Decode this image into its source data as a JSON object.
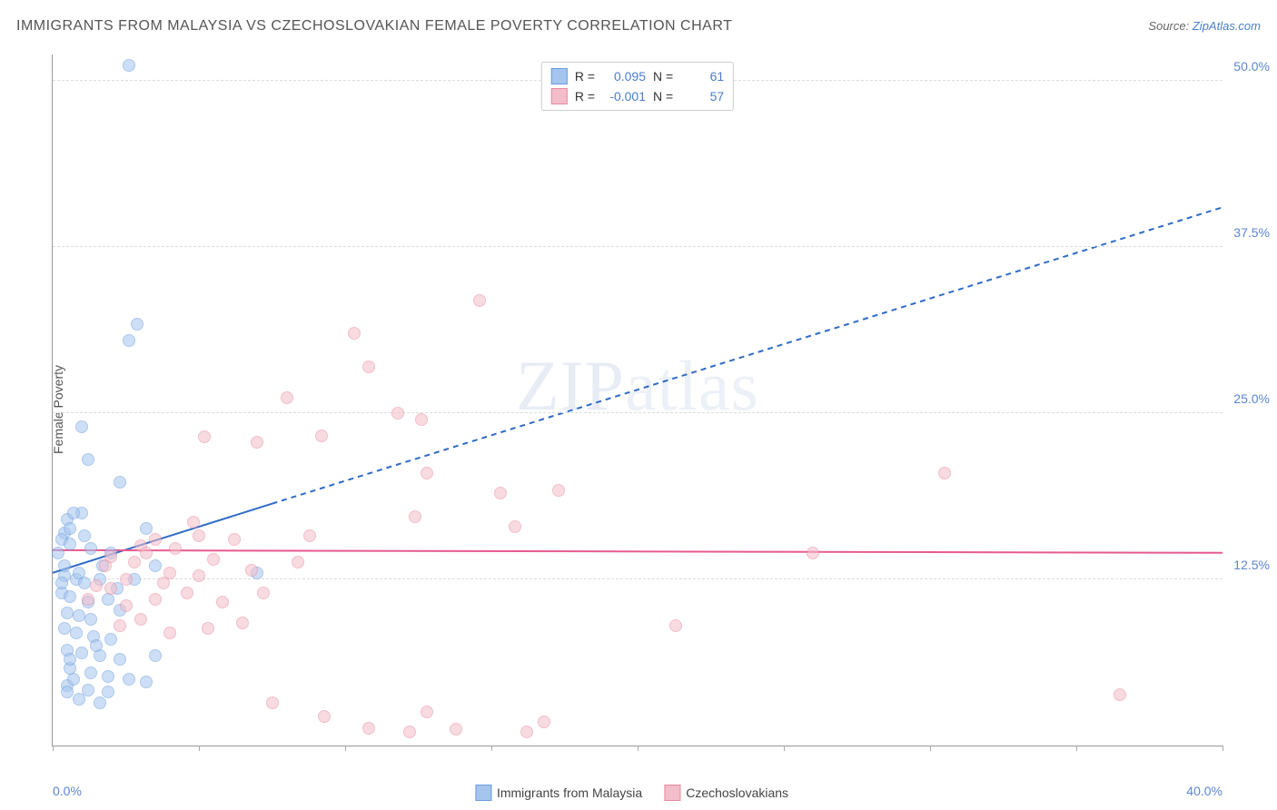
{
  "title": "IMMIGRANTS FROM MALAYSIA VS CZECHOSLOVAKIAN FEMALE POVERTY CORRELATION CHART",
  "source_label": "Source:",
  "source_link": "ZipAtlas.com",
  "ylabel": "Female Poverty",
  "watermark_a": "ZIP",
  "watermark_b": "atlas",
  "chart": {
    "type": "scatter",
    "xlim": [
      0,
      40
    ],
    "ylim": [
      0,
      52
    ],
    "xtick_positions": [
      0,
      5,
      10,
      15,
      20,
      25,
      30,
      35,
      40
    ],
    "xtick_labels": {
      "0": "0.0%",
      "40": "40.0%"
    },
    "ytick_positions": [
      12.5,
      25.0,
      37.5,
      50.0
    ],
    "ytick_labels": [
      "12.5%",
      "25.0%",
      "37.5%",
      "50.0%"
    ],
    "grid_color": "#dddddd",
    "axis_color": "#999999",
    "background_color": "#ffffff",
    "label_fontsize": 14,
    "label_color": "#5b86d1",
    "marker_radius": 7,
    "marker_opacity": 0.55,
    "series": [
      {
        "name": "Immigrants from Malaysia",
        "color_fill": "#a5c5ef",
        "color_stroke": "#6a9bdc",
        "R": "0.095",
        "N": "61",
        "line": {
          "x1": 0,
          "y1": 13.0,
          "x2": 7.5,
          "y2": 18.2,
          "solid_until_x": 7.5,
          "x2_dash": 40,
          "y2_dash": 40.5,
          "color": "#2e6bc7",
          "width": 2,
          "dash": "6,5"
        },
        "points": [
          [
            2.6,
            51.2
          ],
          [
            2.6,
            30.5
          ],
          [
            2.9,
            31.7
          ],
          [
            1.0,
            24.0
          ],
          [
            1.2,
            21.5
          ],
          [
            2.3,
            19.8
          ],
          [
            1.0,
            17.5
          ],
          [
            0.5,
            17.0
          ],
          [
            0.7,
            17.5
          ],
          [
            0.4,
            16.0
          ],
          [
            0.3,
            15.5
          ],
          [
            0.6,
            15.2
          ],
          [
            1.3,
            14.8
          ],
          [
            2.0,
            14.5
          ],
          [
            3.2,
            16.3
          ],
          [
            0.4,
            12.8
          ],
          [
            0.8,
            12.5
          ],
          [
            1.1,
            12.2
          ],
          [
            1.6,
            12.5
          ],
          [
            2.2,
            11.8
          ],
          [
            3.5,
            13.5
          ],
          [
            0.3,
            11.5
          ],
          [
            0.6,
            11.2
          ],
          [
            1.2,
            10.8
          ],
          [
            1.9,
            11.0
          ],
          [
            0.5,
            10.0
          ],
          [
            0.9,
            9.8
          ],
          [
            1.3,
            9.5
          ],
          [
            0.4,
            8.8
          ],
          [
            0.8,
            8.5
          ],
          [
            1.4,
            8.2
          ],
          [
            2.0,
            8.0
          ],
          [
            0.5,
            7.2
          ],
          [
            1.0,
            7.0
          ],
          [
            1.6,
            6.8
          ],
          [
            2.3,
            6.5
          ],
          [
            3.5,
            6.8
          ],
          [
            0.6,
            5.8
          ],
          [
            1.3,
            5.5
          ],
          [
            1.9,
            5.2
          ],
          [
            2.6,
            5.0
          ],
          [
            3.2,
            4.8
          ],
          [
            0.5,
            4.5
          ],
          [
            1.2,
            4.2
          ],
          [
            1.9,
            4.0
          ],
          [
            0.9,
            3.5
          ],
          [
            1.6,
            3.2
          ],
          [
            0.6,
            16.3
          ],
          [
            0.2,
            14.5
          ],
          [
            0.6,
            6.5
          ],
          [
            1.1,
            15.8
          ],
          [
            0.4,
            13.5
          ],
          [
            0.9,
            13.0
          ],
          [
            1.7,
            13.5
          ],
          [
            0.3,
            12.2
          ],
          [
            7.0,
            13.0
          ],
          [
            0.5,
            4.0
          ],
          [
            2.3,
            10.2
          ],
          [
            1.5,
            7.5
          ],
          [
            2.8,
            12.5
          ],
          [
            0.7,
            5.0
          ]
        ]
      },
      {
        "name": "Czechoslovakians",
        "color_fill": "#f4bdca",
        "color_stroke": "#e78aa2",
        "R": "-0.001",
        "N": "57",
        "line": {
          "x1": 0,
          "y1": 14.7,
          "x2": 40,
          "y2": 14.5,
          "color": "#e75a8f",
          "width": 2
        },
        "points": [
          [
            14.6,
            33.5
          ],
          [
            10.3,
            31.0
          ],
          [
            10.8,
            28.5
          ],
          [
            8.0,
            26.2
          ],
          [
            11.8,
            25.0
          ],
          [
            5.2,
            23.2
          ],
          [
            9.2,
            23.3
          ],
          [
            12.6,
            24.5
          ],
          [
            7.0,
            22.8
          ],
          [
            12.8,
            20.5
          ],
          [
            15.3,
            19.0
          ],
          [
            17.3,
            19.2
          ],
          [
            12.4,
            17.2
          ],
          [
            15.8,
            16.5
          ],
          [
            30.5,
            20.5
          ],
          [
            3.0,
            15.0
          ],
          [
            5.5,
            14.0
          ],
          [
            3.2,
            14.5
          ],
          [
            4.0,
            13.0
          ],
          [
            5.0,
            12.8
          ],
          [
            6.8,
            13.2
          ],
          [
            8.4,
            13.8
          ],
          [
            2.0,
            11.8
          ],
          [
            3.5,
            11.0
          ],
          [
            4.6,
            11.5
          ],
          [
            1.5,
            12.0
          ],
          [
            2.5,
            12.5
          ],
          [
            5.8,
            10.8
          ],
          [
            7.2,
            11.5
          ],
          [
            2.3,
            9.0
          ],
          [
            3.0,
            9.5
          ],
          [
            4.0,
            8.5
          ],
          [
            5.3,
            8.8
          ],
          [
            6.5,
            9.2
          ],
          [
            21.3,
            9.0
          ],
          [
            26.0,
            14.5
          ],
          [
            1.8,
            13.5
          ],
          [
            2.8,
            13.8
          ],
          [
            1.2,
            11.0
          ],
          [
            3.8,
            12.2
          ],
          [
            7.5,
            3.2
          ],
          [
            9.3,
            2.2
          ],
          [
            10.8,
            1.3
          ],
          [
            12.2,
            1.0
          ],
          [
            12.8,
            2.5
          ],
          [
            13.8,
            1.2
          ],
          [
            16.2,
            1.0
          ],
          [
            16.8,
            1.8
          ],
          [
            36.5,
            3.8
          ],
          [
            4.8,
            16.8
          ],
          [
            6.2,
            15.5
          ],
          [
            8.8,
            15.8
          ],
          [
            2.0,
            14.2
          ],
          [
            3.5,
            15.5
          ],
          [
            2.5,
            10.5
          ],
          [
            4.2,
            14.8
          ],
          [
            5.0,
            15.8
          ]
        ]
      }
    ]
  },
  "legend_stats_labels": {
    "R": "R =",
    "N": "N ="
  }
}
